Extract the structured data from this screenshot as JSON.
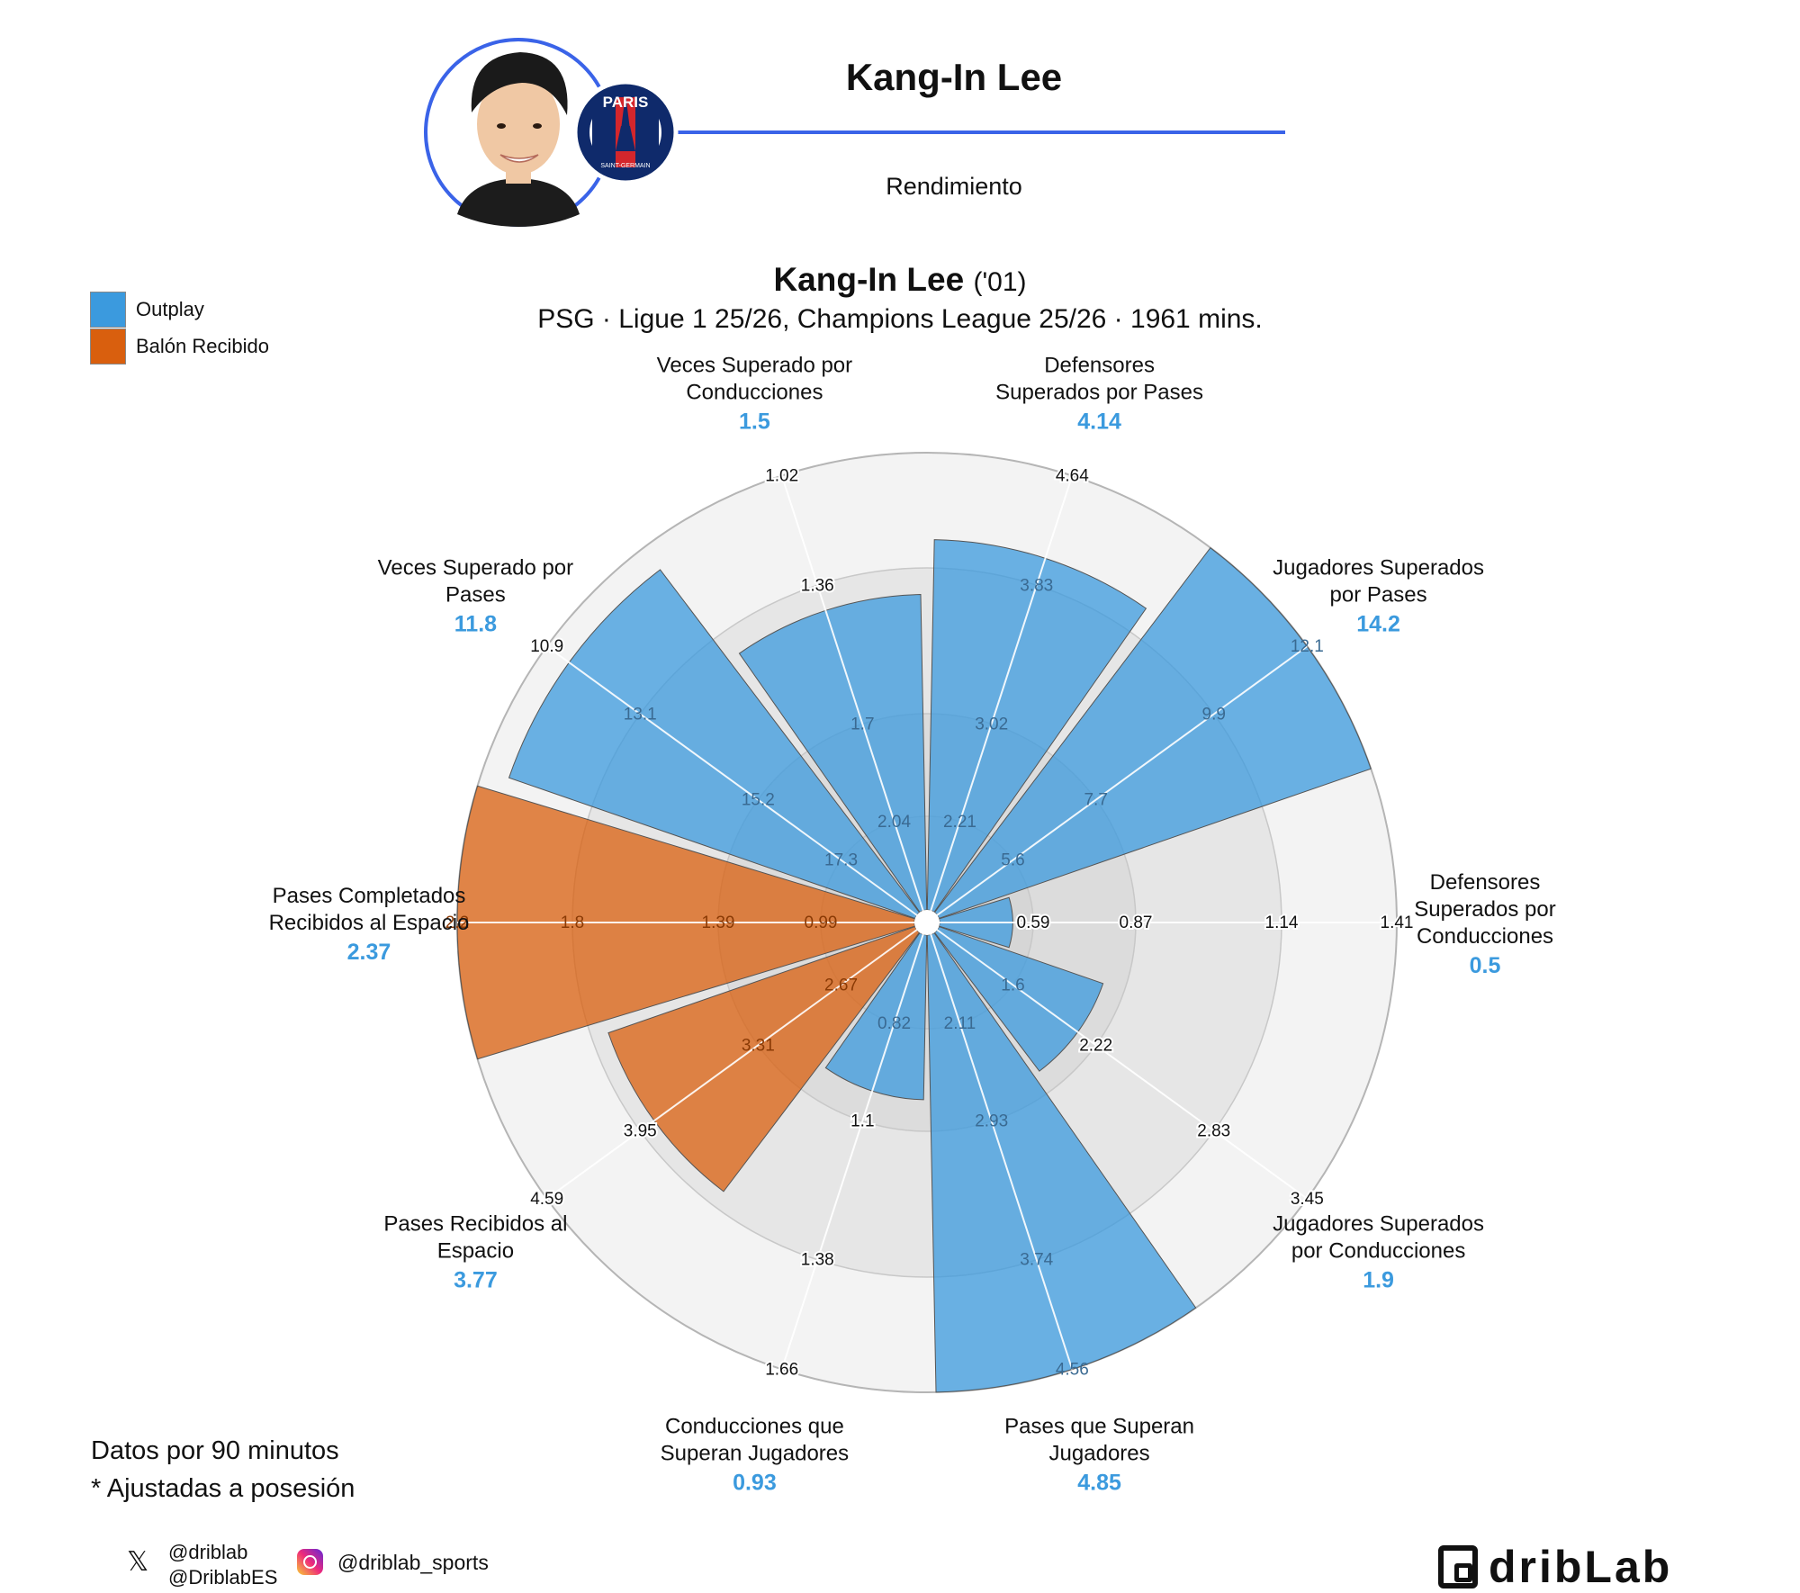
{
  "header": {
    "player_name": "Kang-In Lee",
    "subtitle": "Rendimiento",
    "club_crest_top": "PARIS",
    "club_crest_bottom": "SAINT-GERMAIN"
  },
  "title": {
    "player_name": "Kang-In Lee",
    "birth_year": "('01)",
    "subtitle": "PSG · Ligue 1 25/26, Champions League 25/26 · 1961 mins."
  },
  "legend": {
    "items": [
      {
        "label": "Outplay",
        "color": "#3b9ade"
      },
      {
        "label": "Balón Recibido",
        "color": "#d95f0e"
      }
    ]
  },
  "notes": {
    "line1": "Datos por 90 minutos",
    "line2": "* Ajustadas a posesión"
  },
  "social": {
    "x_handle_1": "@driblab",
    "x_handle_2": "@DriblabES",
    "instagram": "@driblab_sports",
    "x_icon": "x-logo-icon",
    "instagram_icon": "instagram-icon"
  },
  "brand": {
    "logo_text": "dribLab"
  },
  "chart_data": {
    "type": "pizza",
    "colors": {
      "Outplay": "#3b9ade",
      "Balón Recibido": "#d95f0e",
      "value_label": "#3b9ade"
    },
    "metrics": [
      {
        "name": "Defensores Superados por Pases",
        "label_lines": [
          "Defensores",
          "Superados por Pases"
        ],
        "value": "4.14",
        "group": "Outplay",
        "fill": 0.81,
        "ticks": [
          "2.21",
          "3.02",
          "3.83",
          "4.64"
        ]
      },
      {
        "name": "Jugadores Superados por Pases",
        "label_lines": [
          "Jugadores Superados",
          "por Pases"
        ],
        "value": "14.2",
        "group": "Outplay",
        "fill": 1.0,
        "ticks": [
          "5.6",
          "7.7",
          "9.9",
          "12.1"
        ]
      },
      {
        "name": "Defensores Superados por Conducciones",
        "label_lines": [
          "Defensores",
          "Superados por",
          "Conducciones"
        ],
        "value": "0.5",
        "group": "Outplay",
        "fill": 0.16,
        "ticks": [
          "0.59",
          "0.87",
          "1.14",
          "1.41"
        ]
      },
      {
        "name": "Jugadores Superados por Conducciones",
        "label_lines": [
          "Jugadores Superados",
          "por Conducciones"
        ],
        "value": "1.9",
        "group": "Outplay",
        "fill": 0.38,
        "ticks": [
          "1.6",
          "2.22",
          "2.83",
          "3.45"
        ]
      },
      {
        "name": "Pases que Superan Jugadores",
        "label_lines": [
          "Pases que Superan",
          "Jugadores"
        ],
        "value": "4.85",
        "group": "Outplay",
        "fill": 1.0,
        "ticks": [
          "2.11",
          "2.93",
          "3.74",
          "4.56"
        ]
      },
      {
        "name": "Conducciones que Superan Jugadores",
        "label_lines": [
          "Conducciones que",
          "Superan Jugadores"
        ],
        "value": "0.93",
        "group": "Outplay",
        "fill": 0.36,
        "ticks": [
          "0.82",
          "1.1",
          "1.38",
          "1.66"
        ]
      },
      {
        "name": "Pases Recibidos al Espacio",
        "label_lines": [
          "Pases Recibidos al",
          "Espacio"
        ],
        "value": "3.77",
        "group": "Balón Recibido",
        "fill": 0.71,
        "ticks": [
          "2.67",
          "3.31",
          "3.95",
          "4.59"
        ]
      },
      {
        "name": "Pases Completados Recibidos al Espacio",
        "label_lines": [
          "Pases Completados",
          "Recibidos al Espacio"
        ],
        "value": "2.37",
        "group": "Balón Recibido",
        "fill": 1.0,
        "ticks": [
          "0.99",
          "1.39",
          "1.8",
          "2.2"
        ]
      },
      {
        "name": "Veces Superado por Pases",
        "label_lines": [
          "Veces Superado por",
          "Pases"
        ],
        "value": "11.8",
        "group": "Outplay",
        "fill": 0.94,
        "ticks": [
          "17.3",
          "15.2",
          "13.1",
          "10.9"
        ]
      },
      {
        "name": "Veces Superado por Conducciones",
        "label_lines": [
          "Veces Superado por",
          "Conducciones"
        ],
        "value": "1.5",
        "group": "Outplay",
        "fill": 0.69,
        "ticks": [
          "2.04",
          "1.7",
          "1.36",
          "1.02"
        ]
      }
    ]
  }
}
